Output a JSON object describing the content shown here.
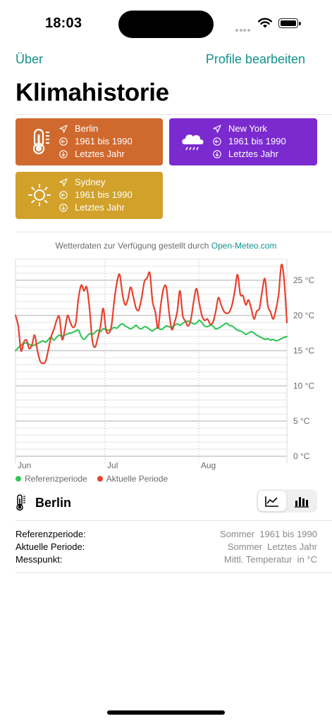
{
  "status_bar": {
    "time": "18:03"
  },
  "nav": {
    "left_label": "Über",
    "right_label": "Profile bearbeiten"
  },
  "title": "Klimahistorie",
  "profiles": [
    {
      "location": "Berlin",
      "reference": "1961 bis 1990",
      "current": "Letztes Jahr",
      "color": "#d0692e",
      "icon": "thermometer-icon"
    },
    {
      "location": "New York",
      "reference": "1961 bis 1990",
      "current": "Letztes Jahr",
      "color": "#7b2ad0",
      "icon": "cloud-rain-icon"
    },
    {
      "location": "Sydney",
      "reference": "1961 bis 1990",
      "current": "Letztes Jahr",
      "color": "#d1a12a",
      "icon": "sun-icon"
    }
  ],
  "attribution": {
    "text": "Wetterdaten zur Verfügung gestellt durch",
    "link": "Open-Meteo.com"
  },
  "chart_data": {
    "type": "line",
    "x_ticks": [
      "Jun",
      "Jul",
      "Aug"
    ],
    "y_ticks": [
      "25 °C",
      "20 °C",
      "15 °C",
      "10 °C",
      "5 °C",
      "0 °C"
    ],
    "ylim": [
      0,
      28
    ],
    "grid": true,
    "legend_position": "bottom-left",
    "series": [
      {
        "name": "Referenzperiode",
        "color": "#34c759",
        "values": [
          15.0,
          15.4,
          15.8,
          16.0,
          16.1,
          15.9,
          15.7,
          15.8,
          16.0,
          16.2,
          16.4,
          16.2,
          16.6,
          16.9,
          16.5,
          16.9,
          17.2,
          17.0,
          17.2,
          17.4,
          17.5,
          17.6,
          17.8,
          17.9,
          17.0,
          16.6,
          17.0,
          17.4,
          17.3,
          17.6,
          17.9,
          17.7,
          18.1,
          18.0,
          17.9,
          18.1,
          18.3,
          18.2,
          18.6,
          18.8,
          18.5,
          18.3,
          18.1,
          18.3,
          18.6,
          18.2,
          18.1,
          18.4,
          18.3,
          18.0,
          17.8,
          18.1,
          18.3,
          18.0,
          18.2,
          18.5,
          18.4,
          18.3,
          18.6,
          18.8,
          18.6,
          18.9,
          19.1,
          19.2,
          19.0,
          18.8,
          18.9,
          19.3,
          19.0,
          18.5,
          18.4,
          18.6,
          18.5,
          18.1,
          18.2,
          18.4,
          18.7,
          18.9,
          18.6,
          18.5,
          18.2,
          17.9,
          17.8,
          17.6,
          17.3,
          17.5,
          17.7,
          17.5,
          17.2,
          17.0,
          16.8,
          16.6,
          16.7,
          16.5,
          16.6,
          16.4,
          16.5,
          16.7,
          16.9,
          17.0
        ]
      },
      {
        "name": "Aktuelle Periode",
        "color": "#e8412e",
        "values": [
          20.0,
          18.5,
          15.0,
          16.2,
          16.5,
          15.3,
          15.8,
          17.2,
          15.0,
          13.5,
          13.2,
          13.5,
          15.2,
          17.0,
          18.0,
          19.3,
          19.8,
          16.6,
          18.0,
          20.0,
          19.0,
          18.3,
          19.0,
          22.5,
          24.3,
          23.5,
          24.0,
          21.0,
          16.5,
          15.5,
          16.8,
          18.5,
          21.0,
          18.0,
          17.5,
          18.5,
          22.0,
          24.7,
          25.8,
          23.0,
          21.5,
          22.3,
          24.0,
          22.6,
          21.0,
          20.8,
          22.5,
          24.8,
          25.3,
          26.0,
          22.0,
          20.5,
          18.2,
          21.5,
          23.8,
          24.0,
          20.5,
          18.0,
          19.0,
          20.5,
          23.5,
          20.0,
          19.2,
          18.5,
          19.5,
          22.0,
          23.8,
          21.8,
          20.0,
          19.3,
          19.5,
          18.8,
          19.0,
          20.5,
          22.5,
          21.5,
          20.6,
          20.3,
          20.5,
          21.5,
          23.5,
          25.8,
          23.0,
          22.8,
          21.5,
          22.2,
          21.0,
          19.5,
          20.6,
          21.0,
          23.5,
          25.2,
          21.5,
          20.5,
          19.5,
          20.8,
          23.0,
          27.2,
          25.0,
          19.0
        ]
      }
    ]
  },
  "legend": [
    {
      "label": "Referenzperiode",
      "color": "#34c759"
    },
    {
      "label": "Aktuelle Periode",
      "color": "#e8412e"
    }
  ],
  "location_row": {
    "name": "Berlin",
    "icon": "thermometer-icon"
  },
  "details": [
    {
      "label": "Referenzperiode:",
      "value": "Sommer  1961 bis 1990"
    },
    {
      "label": "Aktuelle Periode:",
      "value": "Sommer  Letztes Jahr"
    },
    {
      "label": "Messpunkt:",
      "value": "Mittl. Temperatur  in °C"
    }
  ]
}
